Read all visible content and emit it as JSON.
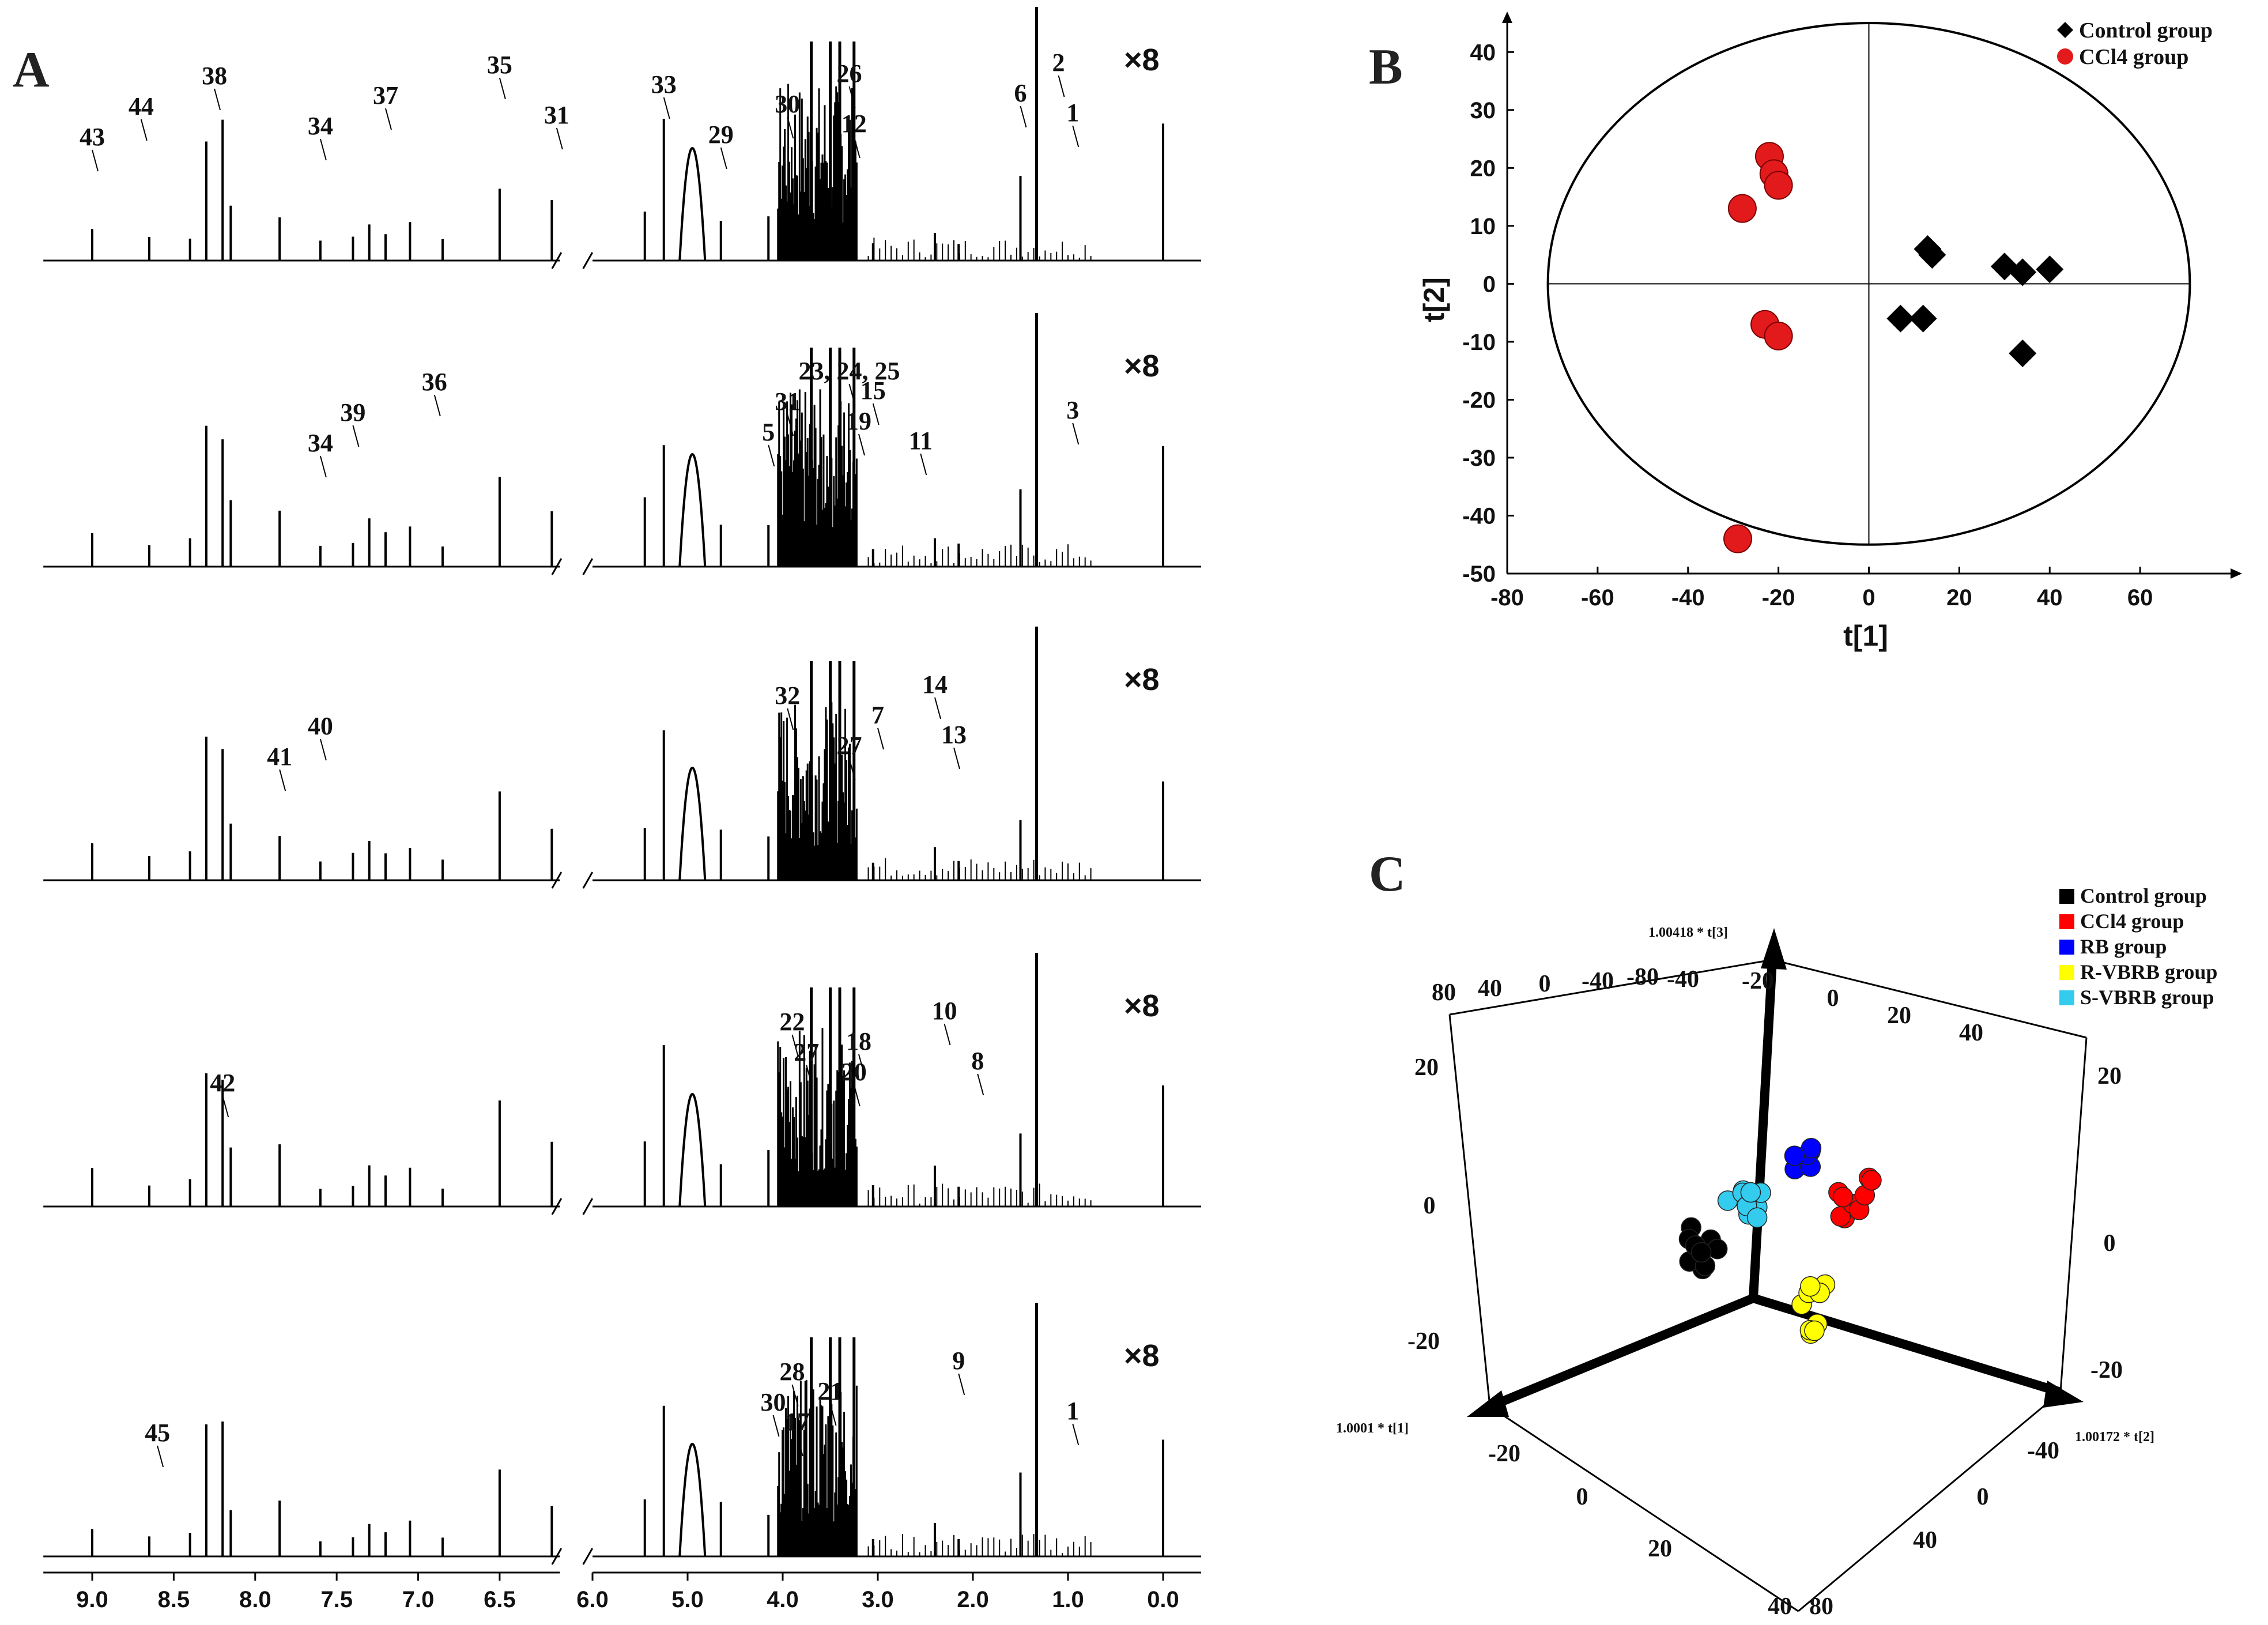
{
  "figure": {
    "panel_labels": {
      "a": "A",
      "b": "B",
      "c": "C"
    }
  },
  "chart_data": [
    {
      "panel": "A",
      "type": "line",
      "title": "",
      "xlabel": "",
      "ylabel": "",
      "x_ticks": [
        "9.0",
        "8.5",
        "8.0",
        "7.5",
        "7.0",
        "6.5",
        "6.0",
        "5.0",
        "4.0",
        "3.0",
        "2.0",
        "1.0",
        "0.0"
      ],
      "x_tick_values": [
        9.0,
        8.5,
        8.0,
        7.5,
        7.0,
        6.5,
        6.0,
        5.0,
        4.0,
        3.0,
        2.0,
        1.0,
        0.0
      ],
      "xlim": [
        9.3,
        -0.4
      ],
      "axis_break_ppm": 6.1,
      "multiplier": "×8",
      "series": [
        {
          "name": "spectrum 1",
          "peak_labels": [
            {
              "text": "43",
              "ppm": 9.0
            },
            {
              "text": "44",
              "ppm": 8.7
            },
            {
              "text": "38",
              "ppm": 8.25
            },
            {
              "text": "34",
              "ppm": 7.6
            },
            {
              "text": "37",
              "ppm": 7.2
            },
            {
              "text": "35",
              "ppm": 6.5
            },
            {
              "text": "31",
              "ppm": 6.15
            },
            {
              "text": "33",
              "ppm": 5.25
            },
            {
              "text": "29",
              "ppm": 4.65
            },
            {
              "text": "30",
              "ppm": 3.95
            },
            {
              "text": "26",
              "ppm": 3.3
            },
            {
              "text": "12",
              "ppm": 3.25
            },
            {
              "text": "6",
              "ppm": 1.5
            },
            {
              "text": "2",
              "ppm": 1.1
            },
            {
              "text": "1",
              "ppm": 0.95
            }
          ]
        },
        {
          "name": "spectrum 2",
          "peak_labels": [
            {
              "text": "34",
              "ppm": 7.6
            },
            {
              "text": "39",
              "ppm": 7.4
            },
            {
              "text": "36",
              "ppm": 6.9
            },
            {
              "text": "5",
              "ppm": 4.15
            },
            {
              "text": "31",
              "ppm": 3.95
            },
            {
              "text": "23, 24, 25",
              "ppm": 3.3
            },
            {
              "text": "19",
              "ppm": 3.2
            },
            {
              "text": "15",
              "ppm": 3.05
            },
            {
              "text": "11",
              "ppm": 2.55
            },
            {
              "text": "3",
              "ppm": 0.95
            }
          ]
        },
        {
          "name": "spectrum 3",
          "peak_labels": [
            {
              "text": "41",
              "ppm": 7.85
            },
            {
              "text": "40",
              "ppm": 7.6
            },
            {
              "text": "32",
              "ppm": 3.95
            },
            {
              "text": "27",
              "ppm": 3.3
            },
            {
              "text": "7",
              "ppm": 3.0
            },
            {
              "text": "14",
              "ppm": 2.4
            },
            {
              "text": "13",
              "ppm": 2.2
            }
          ]
        },
        {
          "name": "spectrum 4",
          "peak_labels": [
            {
              "text": "42",
              "ppm": 8.2
            },
            {
              "text": "27",
              "ppm": 3.75
            },
            {
              "text": "22",
              "ppm": 3.9
            },
            {
              "text": "20",
              "ppm": 3.25
            },
            {
              "text": "18",
              "ppm": 3.2
            },
            {
              "text": "10",
              "ppm": 2.3
            },
            {
              "text": "8",
              "ppm": 1.95
            }
          ]
        },
        {
          "name": "spectrum 5",
          "peak_labels": [
            {
              "text": "45",
              "ppm": 8.6
            },
            {
              "text": "30",
              "ppm": 4.1
            },
            {
              "text": "28",
              "ppm": 3.9
            },
            {
              "text": "17",
              "ppm": 3.85
            },
            {
              "text": "21",
              "ppm": 3.5
            },
            {
              "text": "9",
              "ppm": 2.15
            },
            {
              "text": "1",
              "ppm": 0.95
            }
          ]
        }
      ]
    },
    {
      "panel": "B",
      "type": "scatter",
      "title": "",
      "xlabel": "t[1]",
      "ylabel": "t[2]",
      "xlim": [
        -80,
        80
      ],
      "ylim": [
        -50,
        45
      ],
      "x_ticks": [
        "-80",
        "-60",
        "-40",
        "-20",
        "0",
        "20",
        "40",
        "60"
      ],
      "x_tick_values": [
        -80,
        -60,
        -40,
        -20,
        0,
        20,
        40,
        60
      ],
      "y_ticks": [
        "40",
        "30",
        "20",
        "10",
        "0",
        "-10",
        "-20",
        "-30",
        "-40",
        "-50"
      ],
      "y_tick_values": [
        40,
        30,
        20,
        10,
        0,
        -10,
        -20,
        -30,
        -40,
        -50
      ],
      "ellipse": {
        "rx_data": 71,
        "ry_data": 45
      },
      "legend_position": "top-right",
      "series": [
        {
          "name": "Control group",
          "marker": "diamond",
          "color": "#000000",
          "points": [
            [
              13,
              6
            ],
            [
              14,
              5
            ],
            [
              30,
              3
            ],
            [
              34,
              2
            ],
            [
              40,
              2.5
            ],
            [
              7,
              -6
            ],
            [
              12,
              -6
            ],
            [
              34,
              -12
            ]
          ]
        },
        {
          "name": "CCl4 group",
          "marker": "circle",
          "color": "#e31a1c",
          "points": [
            [
              -22,
              22
            ],
            [
              -21,
              19
            ],
            [
              -20,
              17
            ],
            [
              -28,
              13
            ],
            [
              -23,
              -7
            ],
            [
              -20,
              -9
            ],
            [
              -29,
              -44
            ]
          ]
        }
      ]
    },
    {
      "panel": "C",
      "type": "scatter",
      "subtype": "3d",
      "title": "",
      "axis_labels": {
        "x": "1.0001 * t[1]",
        "y": "1.00172 * t[2]",
        "z": "1.00418 * t[3]"
      },
      "tick_labels_top": [
        "80",
        "40",
        "0",
        "-40",
        "-80",
        "-40",
        "-20",
        "0",
        "20",
        "40"
      ],
      "tick_labels_left": [
        "20",
        "0",
        "-20"
      ],
      "tick_labels_right": [
        "20",
        "0",
        "-20"
      ],
      "tick_labels_bottom_left": [
        "-20",
        "0",
        "20",
        "40"
      ],
      "tick_labels_bottom_right": [
        "-40",
        "0",
        "40",
        "80"
      ],
      "legend_position": "top-right",
      "series": [
        {
          "name": "Control group",
          "color": "#000000"
        },
        {
          "name": "CCl4 group",
          "color": "#ff0000"
        },
        {
          "name": "RB group",
          "color": "#0000ff"
        },
        {
          "name": "R-VBRB group",
          "color": "#ffff00"
        },
        {
          "name": "S-VBRB group",
          "color": "#33ccee"
        }
      ]
    }
  ]
}
